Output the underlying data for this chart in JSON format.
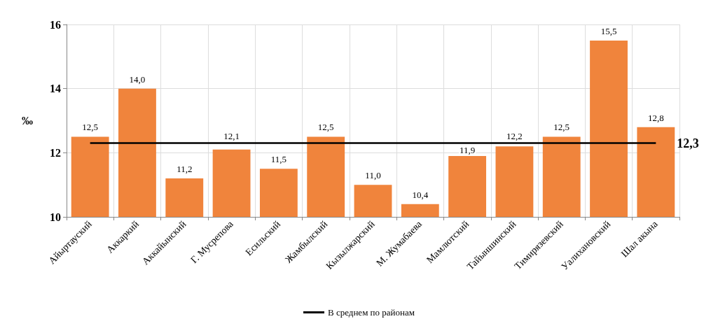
{
  "chart_data": {
    "type": "bar",
    "ylabel": "‰",
    "categories": [
      "Айыртауский",
      "Аккаркий",
      "Аккайынский",
      "Г. Мусрепова",
      "Есильский",
      "Жамбылский",
      "Кызылжарский",
      "М. Жумабаева",
      "Мамлютский",
      "Тайыншинский",
      "Тимирязевский",
      "Уалихановский",
      "Шал акына"
    ],
    "series": [
      {
        "color": "#f0843c",
        "values": [
          12.5,
          14.0,
          11.2,
          12.1,
          11.5,
          12.5,
          11.0,
          10.4,
          11.9,
          12.2,
          12.5,
          15.5,
          12.8
        ],
        "value_labels": [
          "12,5",
          "14,0",
          "11,2",
          "12,1",
          "11,5",
          "12,5",
          "11,0",
          "10,4",
          "11,9",
          "12,2",
          "12,5",
          "15,5",
          "12,8"
        ]
      },
      {
        "type": "line",
        "name": "В среднем по районам",
        "color": "#000000",
        "marker": "none",
        "values": [
          12.3,
          12.3,
          12.3,
          12.3,
          12.3,
          12.3,
          12.3,
          12.3,
          12.3,
          12.3,
          12.3,
          12.3,
          12.3
        ]
      }
    ],
    "annotations": [
      {
        "text": "12,3",
        "x": "Шал акына",
        "y": 12.3
      }
    ],
    "ylim": [
      10,
      16
    ],
    "yticks": [
      10,
      12,
      14,
      16
    ],
    "grid": true,
    "legend": "bottom"
  }
}
